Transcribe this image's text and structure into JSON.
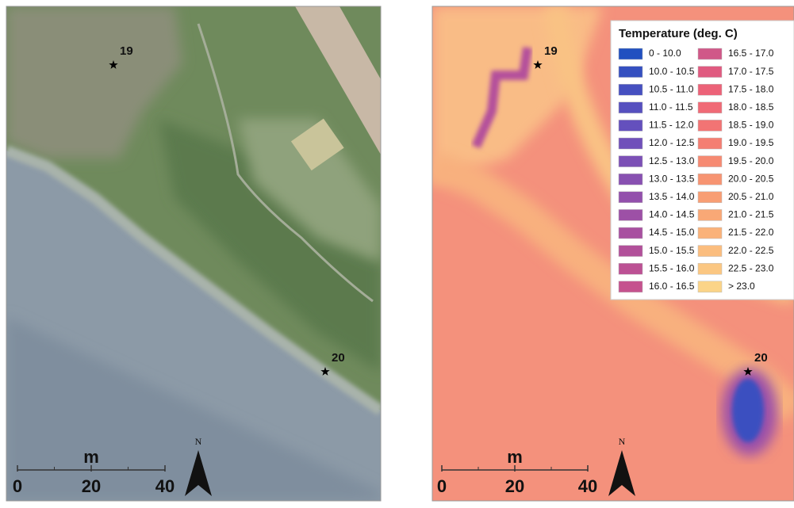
{
  "panels": [
    {
      "stations": [
        "19",
        "20"
      ],
      "scale_bar": {
        "unit": "m",
        "ticks": [
          0,
          20,
          40
        ]
      },
      "north": "N"
    },
    {
      "stations": [
        "19",
        "20"
      ],
      "scale_bar": {
        "unit": "m",
        "ticks": [
          0,
          20,
          40
        ]
      },
      "north": "N",
      "legend": {
        "title": "Temperature (deg. C)",
        "items": [
          {
            "label": "0 - 10.0",
            "color": "#2150c0"
          },
          {
            "label": "10.0 - 10.5",
            "color": "#3550c0"
          },
          {
            "label": "10.5 - 11.0",
            "color": "#4650c0"
          },
          {
            "label": "11.0 - 11.5",
            "color": "#5650bf"
          },
          {
            "label": "11.5 - 12.0",
            "color": "#6450bd"
          },
          {
            "label": "12.0 - 12.5",
            "color": "#7050ba"
          },
          {
            "label": "12.5 - 13.0",
            "color": "#7c50b6"
          },
          {
            "label": "13.0 - 13.5",
            "color": "#8850b1"
          },
          {
            "label": "13.5 - 14.0",
            "color": "#9350ac"
          },
          {
            "label": "14.0 - 14.5",
            "color": "#9d50a6"
          },
          {
            "label": "14.5 - 15.0",
            "color": "#a850a0"
          },
          {
            "label": "15.0 - 15.5",
            "color": "#b2509a"
          },
          {
            "label": "15.5 - 16.0",
            "color": "#bc5194"
          },
          {
            "label": "16.0 - 16.5",
            "color": "#c5528e"
          },
          {
            "label": "16.5 - 17.0",
            "color": "#d05888"
          },
          {
            "label": "17.0 - 17.5",
            "color": "#e05a80"
          },
          {
            "label": "17.5 - 18.0",
            "color": "#ec6278"
          },
          {
            "label": "18.0 - 18.5",
            "color": "#f06a76"
          },
          {
            "label": "18.5 - 19.0",
            "color": "#f27474"
          },
          {
            "label": "19.0 - 19.5",
            "color": "#f47e72"
          },
          {
            "label": "19.5 - 20.0",
            "color": "#f68a72"
          },
          {
            "label": "20.0 - 20.5",
            "color": "#f79472"
          },
          {
            "label": "20.5 - 21.0",
            "color": "#f89e74"
          },
          {
            "label": "21.0 - 21.5",
            "color": "#f9a876"
          },
          {
            "label": "21.5 - 22.0",
            "color": "#fab27a"
          },
          {
            "label": "22.0 - 22.5",
            "color": "#fbbd7e"
          },
          {
            "label": "22.5 - 23.0",
            "color": "#fbc782"
          },
          {
            "label": "> 23.0",
            "color": "#fbd488"
          }
        ]
      }
    }
  ]
}
